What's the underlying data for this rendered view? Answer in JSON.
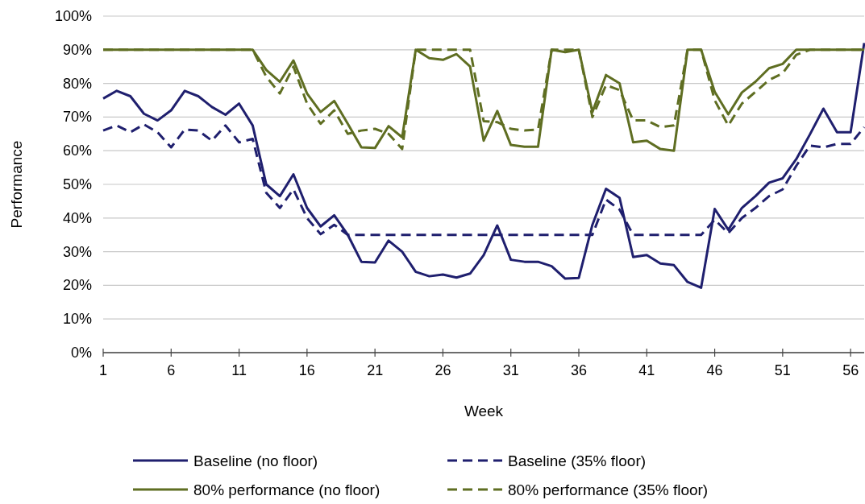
{
  "chart_data": {
    "type": "line",
    "xlabel": "Week",
    "ylabel": "Performance",
    "x": [
      1,
      2,
      3,
      4,
      5,
      6,
      7,
      8,
      9,
      10,
      11,
      12,
      13,
      14,
      15,
      16,
      17,
      18,
      19,
      20,
      21,
      22,
      23,
      24,
      25,
      26,
      27,
      28,
      29,
      30,
      31,
      32,
      33,
      34,
      35,
      36,
      37,
      38,
      39,
      40,
      41,
      42,
      43,
      44,
      45,
      46,
      47,
      48,
      49,
      50,
      51,
      52,
      53,
      54,
      55,
      56,
      57
    ],
    "xlim": [
      1,
      57
    ],
    "xticks": [
      1,
      6,
      11,
      16,
      21,
      26,
      31,
      36,
      41,
      46,
      51,
      56
    ],
    "ylim": [
      0,
      100
    ],
    "yticks": [
      {
        "value": 0,
        "label": "0%"
      },
      {
        "value": 10,
        "label": "10%"
      },
      {
        "value": 20,
        "label": "20%"
      },
      {
        "value": 30,
        "label": "30%"
      },
      {
        "value": 40,
        "label": "40%"
      },
      {
        "value": 50,
        "label": "50%"
      },
      {
        "value": 60,
        "label": "60%"
      },
      {
        "value": 70,
        "label": "70%"
      },
      {
        "value": 80,
        "label": "80%"
      },
      {
        "value": 90,
        "label": "90%"
      },
      {
        "value": 100,
        "label": "100%"
      }
    ],
    "grid": "y",
    "legend": "bottom",
    "marker": "none",
    "series": [
      {
        "name": "Baseline (no floor)",
        "color": "#1f1f6e",
        "line_style": "solid",
        "values": [
          75.5,
          77.8,
          76.2,
          71,
          69,
          72,
          77.8,
          76.2,
          73,
          70.7,
          74,
          67.5,
          50,
          46.5,
          53,
          43,
          37.5,
          40.8,
          35,
          27,
          26.8,
          33.3,
          30,
          24,
          22.7,
          23.2,
          22.3,
          23.5,
          29,
          37.8,
          27.6,
          27,
          27,
          25.7,
          22,
          22.2,
          38,
          48.7,
          46,
          28.4,
          29,
          26.5,
          26,
          21,
          19.3,
          42.7,
          36.5,
          43,
          46.5,
          50.5,
          51.8,
          57.5,
          64.8,
          72.5,
          65.5,
          65.5,
          92
        ]
      },
      {
        "name": "Baseline (35% floor)",
        "color": "#1f1f6e",
        "line_style": "dashed",
        "values": [
          66,
          67.5,
          65.5,
          67.8,
          65.5,
          61,
          66.3,
          66,
          63,
          67.5,
          62.5,
          63.5,
          47.5,
          43,
          48.5,
          40,
          35.2,
          38,
          35,
          35,
          35,
          35,
          35,
          35,
          35,
          35,
          35,
          35,
          35,
          35,
          35,
          35,
          35,
          35,
          35,
          35,
          35,
          45.5,
          42.5,
          35,
          35,
          35,
          35,
          35,
          35,
          39.5,
          35.5,
          40,
          43,
          46.5,
          48.5,
          55.5,
          61.5,
          61,
          62,
          62,
          67
        ]
      },
      {
        "name": "80% performance (no floor)",
        "color": "#5f6e22",
        "line_style": "solid",
        "values": [
          90,
          90,
          90,
          90,
          90,
          90,
          90,
          90,
          90,
          90,
          90,
          90,
          84,
          80.5,
          86.8,
          77,
          71.5,
          74.8,
          68,
          61,
          60.8,
          67.3,
          64,
          90,
          87.5,
          87,
          88.7,
          85,
          63,
          71.8,
          61.7,
          61.2,
          61.2,
          90,
          89.3,
          90,
          71.5,
          82.5,
          80,
          62.5,
          63,
          60.5,
          60,
          90,
          90,
          77.5,
          70.8,
          77.3,
          80.5,
          84.5,
          85.8,
          90,
          90,
          90,
          90,
          90,
          90
        ]
      },
      {
        "name": "80% performance (35% floor)",
        "color": "#5f6e22",
        "line_style": "dashed",
        "values": [
          90,
          90,
          90,
          90,
          90,
          90,
          90,
          90,
          90,
          90,
          90,
          90,
          82,
          77,
          85,
          74,
          68,
          72,
          65,
          66,
          66.5,
          65,
          60.5,
          90,
          90,
          90,
          90,
          90,
          68.8,
          68.5,
          66.5,
          66,
          66.3,
          90,
          90,
          90,
          70,
          79.5,
          78,
          69,
          69,
          67,
          67.5,
          90,
          90,
          75,
          67.5,
          74,
          77.5,
          81,
          83,
          88.5,
          90,
          90,
          90,
          90,
          90
        ]
      }
    ]
  }
}
